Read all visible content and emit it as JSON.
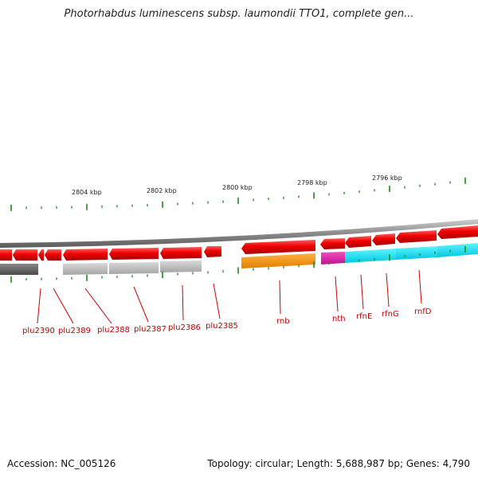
{
  "title": "Photorhabdus luminescens subsp. laumondii TTO1, complete gen...",
  "ruler_labels": [
    "2804 kbp",
    "2802 kbp",
    "2800 kbp",
    "2798 kbp",
    "2796 kbp"
  ],
  "genes": [
    "plu2390",
    "plu2389",
    "plu2388",
    "plu2387",
    "plu2386",
    "plu2385",
    "rnb",
    "nth",
    "rfnE",
    "rfnG",
    "rnfD"
  ],
  "footer": {
    "accession": "Accession: NC_005126",
    "summary": "Topology: circular; Length: 5,688,987 bp; Genes: 4,790"
  },
  "colors": {
    "gene_arrow": "#e80000",
    "backbone": "#8a8a8a",
    "label": "#c00000",
    "tick": "#1a8a1a",
    "cog_dark_gray": "#6e6e6e",
    "cog_light_gray": "#bcbcbc",
    "cog_orange": "#ff9900",
    "cog_magenta": "#e020a0",
    "cog_cyan": "#00e5f0"
  }
}
